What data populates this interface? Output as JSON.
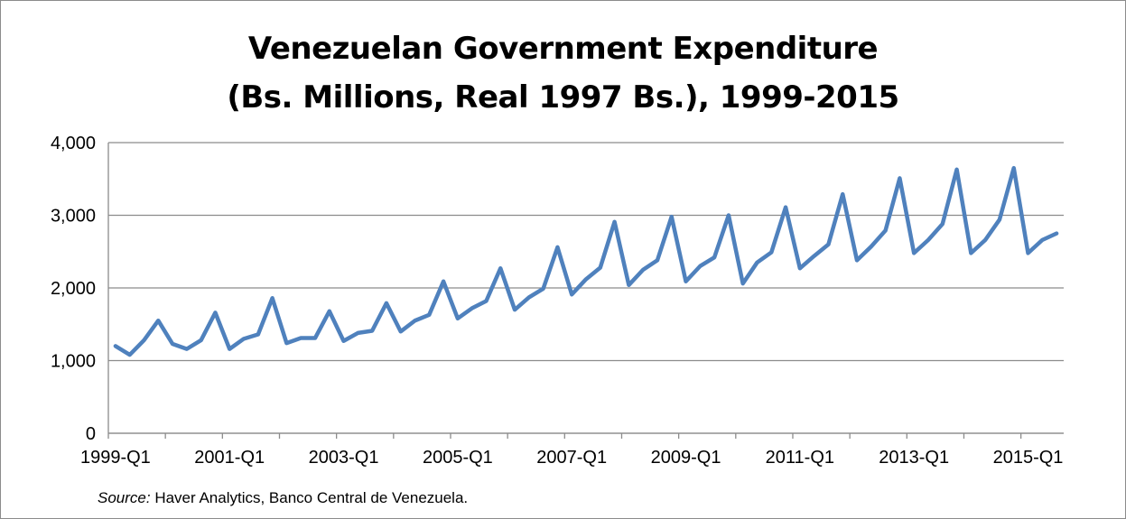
{
  "chart_data": {
    "type": "line",
    "title_line1": "Venezuelan Government Expenditure",
    "title_line2": "(Bs. Millions, Real 1997 Bs.), 1999-2015",
    "xlabel": "",
    "ylabel": "",
    "ylim": [
      0,
      4000
    ],
    "yticks": [
      0,
      1000,
      2000,
      3000,
      4000
    ],
    "ytick_labels": [
      "0",
      "1,000",
      "2,000",
      "3,000",
      "4,000"
    ],
    "xtick_labels": [
      "1999-Q1",
      "2001-Q1",
      "2003-Q1",
      "2005-Q1",
      "2007-Q1",
      "2009-Q1",
      "2011-Q1",
      "2013-Q1",
      "2015-Q1"
    ],
    "grid": true,
    "legend": "none",
    "color": "#4f81bd",
    "x": [
      "1999-Q1",
      "1999-Q2",
      "1999-Q3",
      "1999-Q4",
      "2000-Q1",
      "2000-Q2",
      "2000-Q3",
      "2000-Q4",
      "2001-Q1",
      "2001-Q2",
      "2001-Q3",
      "2001-Q4",
      "2002-Q1",
      "2002-Q2",
      "2002-Q3",
      "2002-Q4",
      "2003-Q1",
      "2003-Q2",
      "2003-Q3",
      "2003-Q4",
      "2004-Q1",
      "2004-Q2",
      "2004-Q3",
      "2004-Q4",
      "2005-Q1",
      "2005-Q2",
      "2005-Q3",
      "2005-Q4",
      "2006-Q1",
      "2006-Q2",
      "2006-Q3",
      "2006-Q4",
      "2007-Q1",
      "2007-Q2",
      "2007-Q3",
      "2007-Q4",
      "2008-Q1",
      "2008-Q2",
      "2008-Q3",
      "2008-Q4",
      "2009-Q1",
      "2009-Q2",
      "2009-Q3",
      "2009-Q4",
      "2010-Q1",
      "2010-Q2",
      "2010-Q3",
      "2010-Q4",
      "2011-Q1",
      "2011-Q2",
      "2011-Q3",
      "2011-Q4",
      "2012-Q1",
      "2012-Q2",
      "2012-Q3",
      "2012-Q4",
      "2013-Q1",
      "2013-Q2",
      "2013-Q3",
      "2013-Q4",
      "2014-Q1",
      "2014-Q2",
      "2014-Q3",
      "2014-Q4",
      "2015-Q1",
      "2015-Q2",
      "2015-Q3"
    ],
    "values": [
      1200,
      1080,
      1280,
      1550,
      1230,
      1160,
      1280,
      1660,
      1160,
      1300,
      1360,
      1860,
      1240,
      1310,
      1310,
      1680,
      1270,
      1380,
      1410,
      1790,
      1400,
      1550,
      1630,
      2090,
      1580,
      1720,
      1820,
      2270,
      1700,
      1870,
      1990,
      2560,
      1910,
      2120,
      2280,
      2910,
      2040,
      2250,
      2380,
      2980,
      2090,
      2300,
      2420,
      3000,
      2060,
      2350,
      2490,
      3110,
      2270,
      2440,
      2600,
      3290,
      2380,
      2570,
      2790,
      3510,
      2480,
      2660,
      2880,
      3630,
      2480,
      2660,
      2940,
      3650,
      2480,
      2660,
      2750
    ]
  },
  "source": {
    "label": "Source:",
    "text": " Haver Analytics, Banco Central de Venezuela."
  }
}
